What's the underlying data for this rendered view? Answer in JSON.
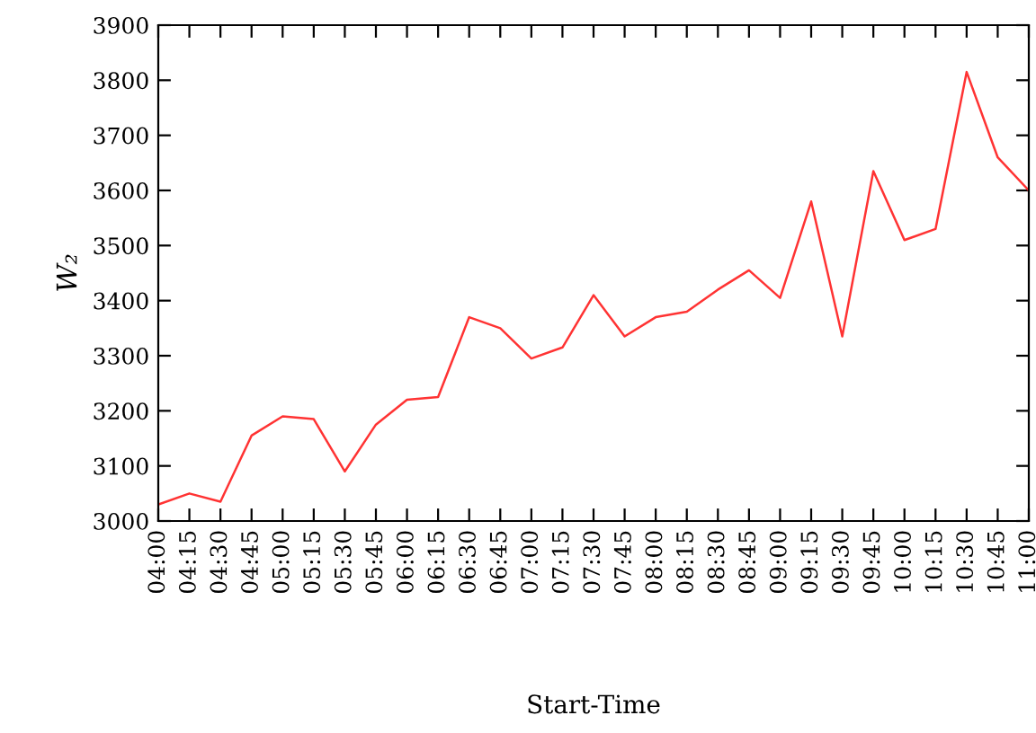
{
  "chart_data": {
    "type": "line",
    "xlabel": "Start-Time",
    "ylabel": "W₂",
    "categories": [
      "04:00",
      "04:15",
      "04:30",
      "04:45",
      "05:00",
      "05:15",
      "05:30",
      "05:45",
      "06:00",
      "06:15",
      "06:30",
      "06:45",
      "07:00",
      "07:15",
      "07:30",
      "07:45",
      "08:00",
      "08:15",
      "08:30",
      "08:45",
      "09:00",
      "09:15",
      "09:30",
      "09:45",
      "10:00",
      "10:15",
      "10:30",
      "10:45",
      "11:00"
    ],
    "series": [
      {
        "color": "#ff3333",
        "values": [
          3030,
          3050,
          3035,
          3155,
          3190,
          3185,
          3090,
          3175,
          3220,
          3225,
          3370,
          3350,
          3295,
          3315,
          3410,
          3335,
          3370,
          3380,
          3420,
          3455,
          3405,
          3580,
          3335,
          3635,
          3510,
          3530,
          3815,
          3660,
          3600
        ]
      }
    ],
    "ylim": [
      3000,
      3900
    ],
    "yticks": [
      3000,
      3100,
      3200,
      3300,
      3400,
      3500,
      3600,
      3700,
      3800,
      3900
    ],
    "grid": false,
    "legend": false,
    "marker": "none",
    "line_style": "solid"
  }
}
